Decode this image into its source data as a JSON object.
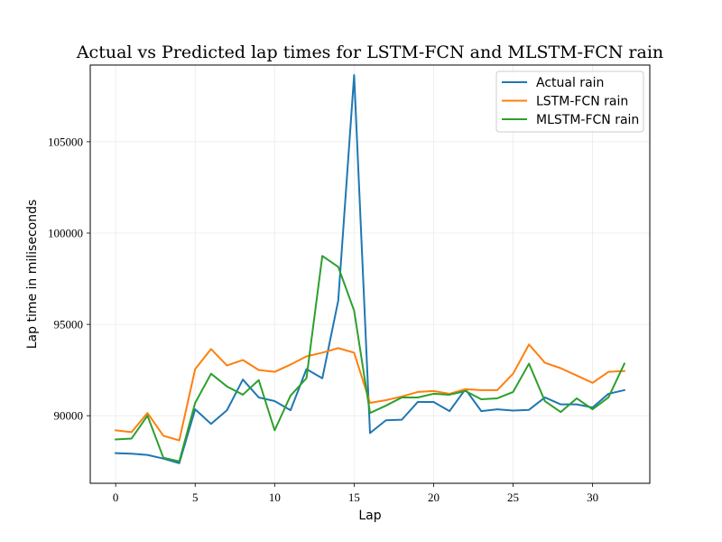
{
  "chart_data": {
    "type": "line",
    "title": "Actual vs Predicted lap times for LSTM-FCN and MLSTM-FCN rain",
    "xlabel": "Lap",
    "ylabel": "Lap time in miliseconds",
    "xlim": [
      -1.6,
      33.6
    ],
    "ylim": [
      86300,
      109200
    ],
    "xticks": [
      0,
      5,
      10,
      15,
      20,
      25,
      30
    ],
    "yticks": [
      90000,
      95000,
      100000,
      105000
    ],
    "grid": true,
    "legend_position": "top-right",
    "x": [
      0,
      1,
      2,
      3,
      4,
      5,
      6,
      7,
      8,
      9,
      10,
      11,
      12,
      13,
      14,
      15,
      16,
      17,
      18,
      19,
      20,
      21,
      22,
      23,
      24,
      25,
      26,
      27,
      28,
      29,
      30,
      31,
      32
    ],
    "series": [
      {
        "name": "Actual rain",
        "color": "#1f77b4",
        "values": [
          87950,
          87920,
          87850,
          87650,
          87400,
          90350,
          89550,
          90300,
          91980,
          91000,
          90800,
          90300,
          92550,
          92050,
          96300,
          108650,
          89050,
          89750,
          89780,
          90750,
          90750,
          90250,
          91450,
          90250,
          90350,
          90280,
          90320,
          91000,
          90620,
          90620,
          90450,
          91200,
          91400
        ]
      },
      {
        "name": "LSTM-FCN rain",
        "color": "#ff7f0e",
        "values": [
          89200,
          89100,
          90150,
          88900,
          88650,
          92550,
          93650,
          92750,
          93050,
          92500,
          92400,
          92800,
          93250,
          93450,
          93700,
          93450,
          90700,
          90850,
          91050,
          91300,
          91350,
          91200,
          91450,
          91400,
          91400,
          92300,
          93900,
          92900,
          92600,
          92200,
          91800,
          92400,
          92450
        ]
      },
      {
        "name": "MLSTM-FCN rain",
        "color": "#2ca02c",
        "values": [
          88700,
          88750,
          90000,
          87700,
          87500,
          90700,
          92300,
          91600,
          91150,
          91950,
          89200,
          91100,
          92050,
          98750,
          98150,
          95750,
          90150,
          90550,
          91000,
          91000,
          91200,
          91150,
          91350,
          90900,
          90950,
          91300,
          92850,
          90800,
          90200,
          90950,
          90350,
          91000,
          92850
        ]
      }
    ]
  }
}
